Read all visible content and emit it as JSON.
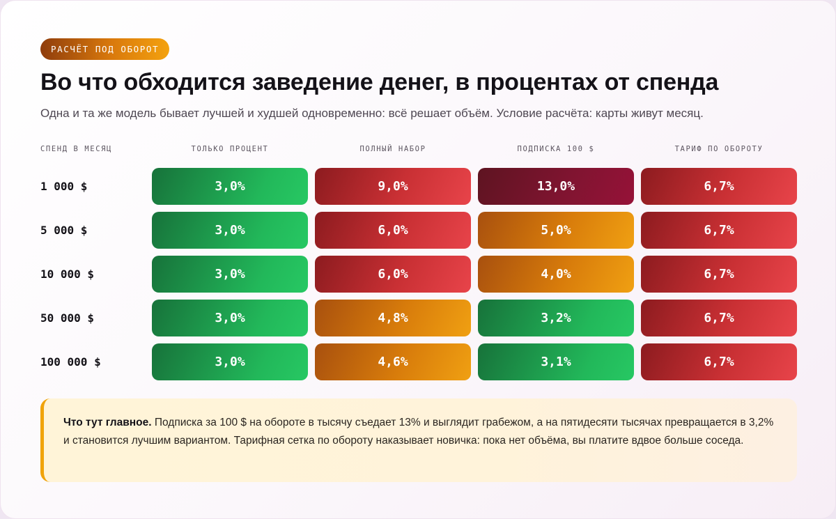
{
  "tag": "РАСЧЁТ ПОД ОБОРОТ",
  "title": "Во что обходится заведение денег, в процентах от спенда",
  "subtitle": "Одна и та же модель бывает лучшей и худшей одновременно: всё решает объём. Условие расчёта: карты живут месяц.",
  "colors": {
    "green": "#22b85a",
    "red": "#c93034",
    "orange": "#e08a0c",
    "maroon": "#7f1430",
    "accent": "#f0a30a"
  },
  "chart_data": {
    "type": "table",
    "row_header": "СПЕНД В МЕСЯЦ",
    "columns": [
      "ТОЛЬКО ПРОЦЕНТ",
      "ПОЛНЫЙ НАБОР",
      "ПОДПИСКА 100 $",
      "ТАРИФ ПО ОБОРОТУ"
    ],
    "rows": [
      {
        "label": "1 000 $",
        "cells": [
          {
            "text": "3,0%",
            "value": 3.0,
            "color": "green"
          },
          {
            "text": "9,0%",
            "value": 9.0,
            "color": "red"
          },
          {
            "text": "13,0%",
            "value": 13.0,
            "color": "maroon"
          },
          {
            "text": "6,7%",
            "value": 6.7,
            "color": "red"
          }
        ]
      },
      {
        "label": "5 000 $",
        "cells": [
          {
            "text": "3,0%",
            "value": 3.0,
            "color": "green"
          },
          {
            "text": "6,0%",
            "value": 6.0,
            "color": "red"
          },
          {
            "text": "5,0%",
            "value": 5.0,
            "color": "orange"
          },
          {
            "text": "6,7%",
            "value": 6.7,
            "color": "red"
          }
        ]
      },
      {
        "label": "10 000 $",
        "cells": [
          {
            "text": "3,0%",
            "value": 3.0,
            "color": "green"
          },
          {
            "text": "6,0%",
            "value": 6.0,
            "color": "red"
          },
          {
            "text": "4,0%",
            "value": 4.0,
            "color": "orange"
          },
          {
            "text": "6,7%",
            "value": 6.7,
            "color": "red"
          }
        ]
      },
      {
        "label": "50 000 $",
        "cells": [
          {
            "text": "3,0%",
            "value": 3.0,
            "color": "green"
          },
          {
            "text": "4,8%",
            "value": 4.8,
            "color": "orange"
          },
          {
            "text": "3,2%",
            "value": 3.2,
            "color": "green"
          },
          {
            "text": "6,7%",
            "value": 6.7,
            "color": "red"
          }
        ]
      },
      {
        "label": "100 000 $",
        "cells": [
          {
            "text": "3,0%",
            "value": 3.0,
            "color": "green"
          },
          {
            "text": "4,6%",
            "value": 4.6,
            "color": "orange"
          },
          {
            "text": "3,1%",
            "value": 3.1,
            "color": "green"
          },
          {
            "text": "6,7%",
            "value": 6.7,
            "color": "red"
          }
        ]
      }
    ]
  },
  "note": {
    "lead": "Что тут главное.",
    "text": " Подписка за 100 $ на обороте в тысячу съедает 13% и выглядит грабежом, а на пятидесяти тысячах превращается в 3,2% и становится лучшим вариантом. Тарифная сетка по обороту наказывает новичка: пока нет объёма, вы платите вдвое больше соседа."
  }
}
